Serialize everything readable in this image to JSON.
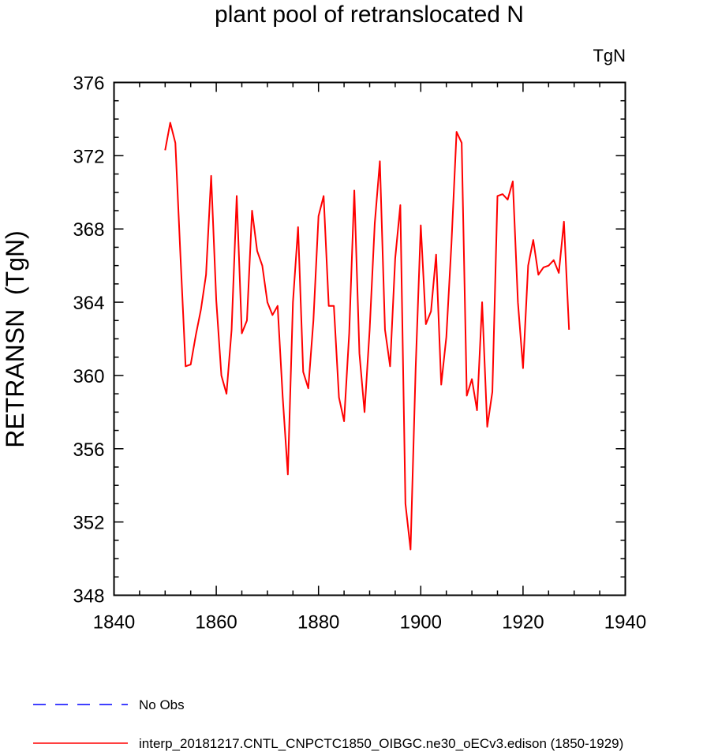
{
  "chart_data": {
    "type": "line",
    "title": "plant pool of retranslocated N",
    "units_label": "TgN",
    "ylabel": "RETRANSN  (TgN)",
    "xlabel": "",
    "xlim": [
      1840,
      1940
    ],
    "ylim": [
      348,
      376
    ],
    "xticks": [
      1840,
      1860,
      1880,
      1900,
      1920,
      1940
    ],
    "yticks": [
      348,
      352,
      356,
      360,
      364,
      368,
      372,
      376
    ],
    "grid": false,
    "legend_position": "bottom-left",
    "series": [
      {
        "name": "No Obs",
        "color": "#0000ff",
        "dash": "dashed",
        "values": []
      },
      {
        "name": "interp_20181217.CNTL_CNPCTC1850_OIBGC.ne30_oECv3.edison (1850-1929)",
        "color": "#ff0000",
        "dash": "solid",
        "x": [
          1850,
          1851,
          1852,
          1853,
          1854,
          1855,
          1856,
          1857,
          1858,
          1859,
          1860,
          1861,
          1862,
          1863,
          1864,
          1865,
          1866,
          1867,
          1868,
          1869,
          1870,
          1871,
          1872,
          1873,
          1874,
          1875,
          1876,
          1877,
          1878,
          1879,
          1880,
          1881,
          1882,
          1883,
          1884,
          1885,
          1886,
          1887,
          1888,
          1889,
          1890,
          1891,
          1892,
          1893,
          1894,
          1895,
          1896,
          1897,
          1898,
          1899,
          1900,
          1901,
          1902,
          1903,
          1904,
          1905,
          1906,
          1907,
          1908,
          1909,
          1910,
          1911,
          1912,
          1913,
          1914,
          1915,
          1916,
          1917,
          1918,
          1919,
          1920,
          1921,
          1922,
          1923,
          1924,
          1925,
          1926,
          1927,
          1928,
          1929
        ],
        "values": [
          372.3,
          373.8,
          372.7,
          366.5,
          360.5,
          360.6,
          362.2,
          363.6,
          365.5,
          370.9,
          364.1,
          360.0,
          359.0,
          362.5,
          369.8,
          362.3,
          363.0,
          369.0,
          366.8,
          366.0,
          364.0,
          363.3,
          363.8,
          358.8,
          354.6,
          364.0,
          368.1,
          360.2,
          359.3,
          363.0,
          368.7,
          369.8,
          363.8,
          363.8,
          358.8,
          357.5,
          362.3,
          370.1,
          361.2,
          358.0,
          362.5,
          368.3,
          371.7,
          362.5,
          360.5,
          366.4,
          369.3,
          353.0,
          350.5,
          360.4,
          368.2,
          362.8,
          363.5,
          366.6,
          359.5,
          362.1,
          367.2,
          373.3,
          372.7,
          358.9,
          359.8,
          358.1,
          364.0,
          357.2,
          359.1,
          369.8,
          369.9,
          369.6,
          370.6,
          364.0,
          360.4,
          366.0,
          367.4,
          365.5,
          365.9,
          366.0,
          366.3,
          365.6,
          368.4,
          362.5
        ]
      }
    ]
  }
}
